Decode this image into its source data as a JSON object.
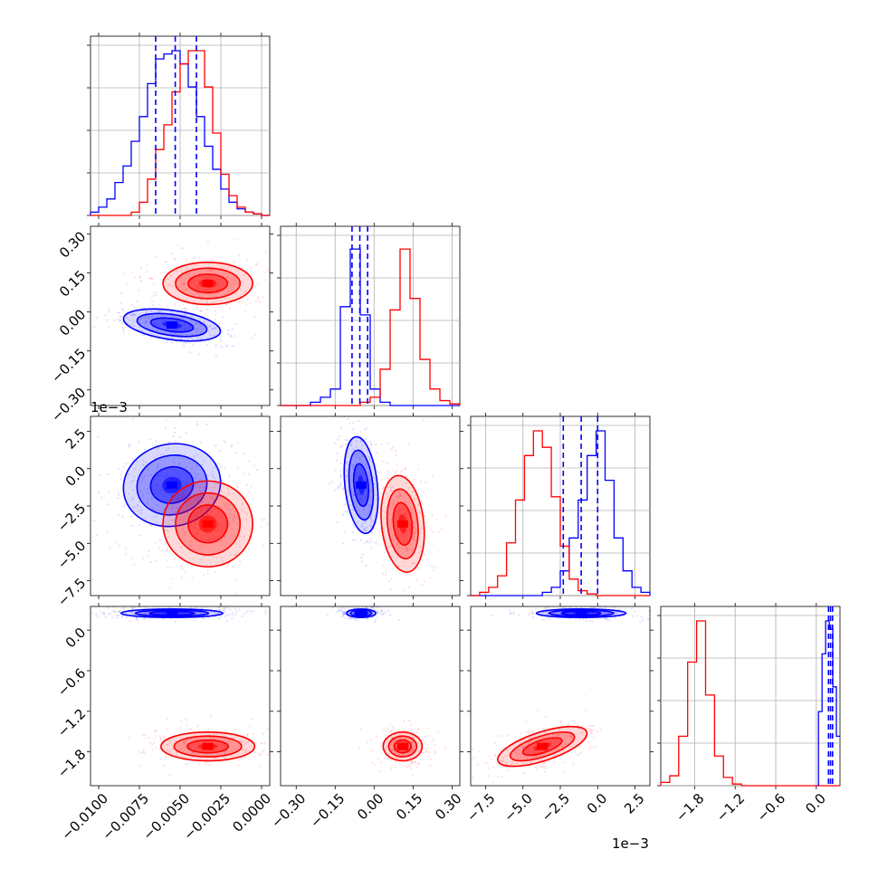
{
  "chart_data": {
    "type": "corner",
    "title": "",
    "parameters": [
      {
        "xlim": [
          -0.0105,
          0.0005
        ],
        "ticks": [
          "−0.0100",
          "−0.0075",
          "−0.0050",
          "−0.0025",
          "0.0000"
        ],
        "tick_values": [
          -0.01,
          -0.0075,
          -0.005,
          -0.0025,
          0.0
        ],
        "offset": ""
      },
      {
        "xlim": [
          -0.36,
          0.33
        ],
        "ticks": [
          "−0.30",
          "−0.15",
          "0.00",
          "0.15",
          "0.30"
        ],
        "tick_values": [
          -0.3,
          -0.15,
          0.0,
          0.15,
          0.3
        ],
        "offset": "1e−3"
      },
      {
        "xlim": [
          -0.0085,
          0.0035
        ],
        "ticks": [
          "−7.5",
          "−5.0",
          "−2.5",
          "0.0",
          "2.5"
        ],
        "tick_values": [
          -0.0075,
          -0.005,
          -0.0025,
          0.0,
          0.0025
        ],
        "offset": "1e−3"
      },
      {
        "xlim": [
          -2.3,
          0.35
        ],
        "ticks": [
          "−1.8",
          "−1.2",
          "−0.6",
          "0.0"
        ],
        "tick_values": [
          -1.8,
          -1.2,
          -0.6,
          0.0
        ],
        "offset": ""
      }
    ],
    "y_ticks_rows": [
      {
        "row": 1,
        "ticks": [
          "0.30",
          "0.15",
          "0.00",
          "−0.15",
          "−0.30"
        ],
        "tick_values": [
          0.3,
          0.15,
          0.0,
          -0.15,
          -0.3
        ]
      },
      {
        "row": 2,
        "ticks": [
          "2.5",
          "0.0",
          "−2.5",
          "−5.0",
          "−7.5"
        ],
        "tick_values": [
          0.0025,
          0.0,
          -0.0025,
          -0.005,
          -0.0075
        ]
      },
      {
        "row": 3,
        "ticks": [
          "0.0",
          "−0.6",
          "−1.2",
          "−1.8"
        ],
        "tick_values": [
          0.0,
          -0.6,
          -1.2,
          -1.8
        ]
      }
    ],
    "series": [
      {
        "color": "#0000ff",
        "means": [
          -0.0055,
          -0.05,
          -0.0012,
          0.25
        ],
        "stds": [
          0.0013,
          0.035,
          0.0012,
          0.012
        ],
        "quantile_lines": [
          [
            -0.0065,
            -0.0053,
            -0.004
          ],
          [
            -0.085,
            -0.055,
            -0.025
          ],
          [
            -0.0023,
            -0.0011,
            0.0
          ]
        ],
        "hist_bins": [
          [
            0.02,
            0.05,
            0.1,
            0.2,
            0.3,
            0.45,
            0.6,
            0.8,
            0.95,
            0.98,
            1.0,
            0.92,
            0.78,
            0.6,
            0.42,
            0.28,
            0.16,
            0.08,
            0.04,
            0.02,
            0.01,
            0.0
          ],
          [
            0.0,
            0.0,
            0.0,
            0.02,
            0.05,
            0.1,
            0.6,
            0.95,
            0.55,
            0.1,
            0.02,
            0.0,
            0.0,
            0.0,
            0.0,
            0.0,
            0.0,
            0.0
          ],
          [
            0.0,
            0.0,
            0.0,
            0.0,
            0.0,
            0.0,
            0.0,
            0.0,
            0.02,
            0.05,
            0.15,
            0.35,
            0.58,
            0.85,
            1.0,
            0.7,
            0.35,
            0.15,
            0.05,
            0.02
          ]
        ]
      },
      {
        "color": "#ff0000",
        "means": [
          -0.0033,
          0.11,
          -0.0037,
          -1.72
        ],
        "stds": [
          0.0012,
          0.045,
          0.0012,
          0.1
        ],
        "hist_bins": [
          [
            0.0,
            0.0,
            0.0,
            0.0,
            0.0,
            0.02,
            0.08,
            0.22,
            0.4,
            0.55,
            0.75,
            0.92,
            1.0,
            1.0,
            0.78,
            0.5,
            0.25,
            0.12,
            0.05,
            0.02,
            0.01,
            0.0
          ],
          [
            0.0,
            0.0,
            0.0,
            0.0,
            0.0,
            0.0,
            0.0,
            0.0,
            0.02,
            0.05,
            0.22,
            0.58,
            0.95,
            0.65,
            0.28,
            0.1,
            0.03,
            0.01
          ],
          [
            0.0,
            0.02,
            0.05,
            0.12,
            0.32,
            0.58,
            0.85,
            1.0,
            0.9,
            0.6,
            0.3,
            0.1,
            0.03,
            0.01,
            0.0,
            0.0,
            0.0,
            0.0,
            0.0,
            0.0
          ],
          [
            0.02,
            0.06,
            0.3,
            0.75,
            1.0,
            0.55,
            0.18,
            0.05,
            0.01,
            0.0,
            0.0,
            0.0,
            0.0,
            0.0,
            0.0,
            0.0,
            0.0,
            0.0,
            0.0,
            0.0
          ]
        ]
      }
    ],
    "contours": [
      {
        "row": 1,
        "col": 0,
        "color": "#0000ff",
        "center": [
          -0.0055,
          -0.05
        ],
        "radii": [
          0.0024,
          0.045
        ],
        "rot": 8
      },
      {
        "row": 1,
        "col": 0,
        "color": "#ff0000",
        "center": [
          -0.0033,
          0.11
        ],
        "radii": [
          0.0022,
          0.065
        ],
        "rot": 0
      },
      {
        "row": 2,
        "col": 0,
        "color": "#0000ff",
        "center": [
          -0.0055,
          -0.0011
        ],
        "radii": [
          0.0024,
          0.0022
        ],
        "rot": -12
      },
      {
        "row": 2,
        "col": 0,
        "color": "#ff0000",
        "center": [
          -0.0033,
          -0.0037
        ],
        "radii": [
          0.0022,
          0.0023
        ],
        "rot": 0
      },
      {
        "row": 2,
        "col": 1,
        "color": "#0000ff",
        "center": [
          -0.05,
          -0.0011
        ],
        "radii": [
          0.05,
          0.0026
        ],
        "rot": -6
      },
      {
        "row": 2,
        "col": 1,
        "color": "#ff0000",
        "center": [
          0.11,
          -0.0037
        ],
        "radii": [
          0.065,
          0.0026
        ],
        "rot": -6
      },
      {
        "row": 3,
        "col": 0,
        "color": "#0000ff",
        "center": [
          -0.0055,
          0.25
        ],
        "radii": [
          0.0025,
          0.05
        ],
        "rot": 0
      },
      {
        "row": 3,
        "col": 0,
        "color": "#ff0000",
        "center": [
          -0.0033,
          -1.72
        ],
        "radii": [
          0.0023,
          0.17
        ],
        "rot": 0
      },
      {
        "row": 3,
        "col": 1,
        "color": "#0000ff",
        "center": [
          -0.05,
          0.25
        ],
        "radii": [
          0.045,
          0.05
        ],
        "rot": 0
      },
      {
        "row": 3,
        "col": 1,
        "color": "#ff0000",
        "center": [
          0.11,
          -1.72
        ],
        "radii": [
          0.06,
          0.17
        ],
        "rot": 0
      },
      {
        "row": 3,
        "col": 2,
        "color": "#0000ff",
        "center": [
          -0.0011,
          0.25
        ],
        "radii": [
          0.0024,
          0.05
        ],
        "rot": 0
      },
      {
        "row": 3,
        "col": 2,
        "color": "#ff0000",
        "center": [
          -0.0037,
          -1.72
        ],
        "radii": [
          0.0025,
          0.17
        ],
        "rot": -18
      }
    ],
    "diag_quantiles_blue_row3": [
      0.18,
      0.21,
      0.24
    ],
    "grid": true,
    "legend": "none"
  }
}
